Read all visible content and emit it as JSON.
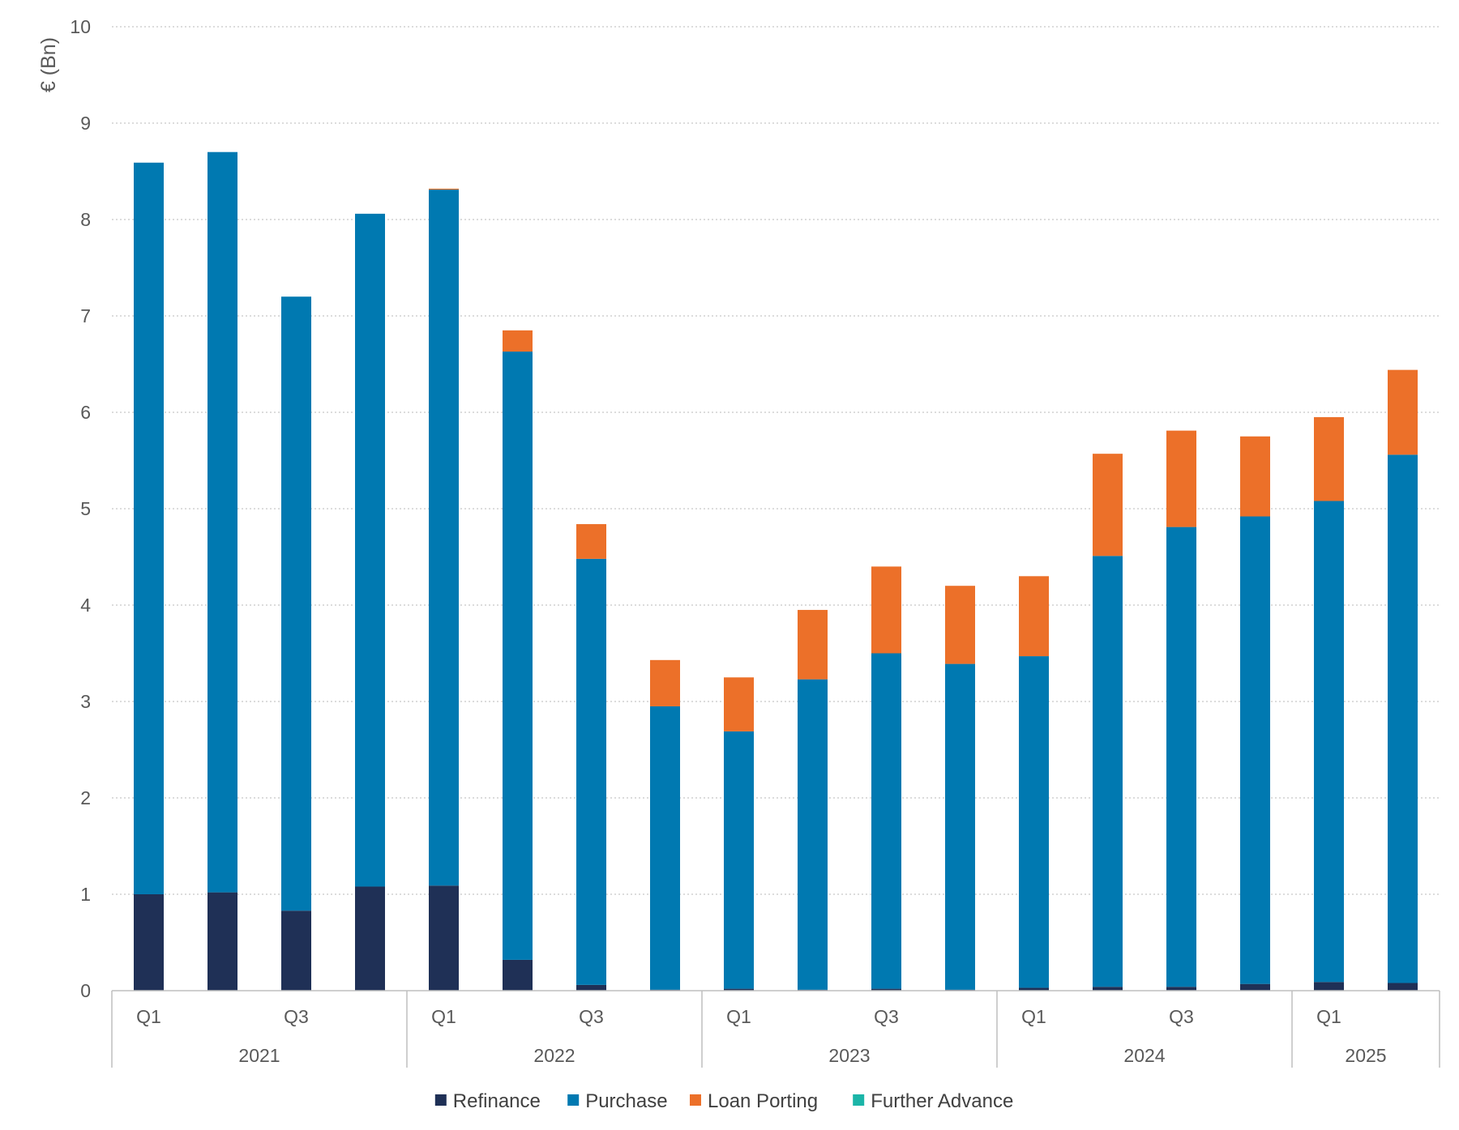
{
  "chart_data": {
    "type": "bar",
    "stacked": true,
    "ylabel": "€ (Bn)",
    "ylim": [
      0,
      10
    ],
    "yticks": [
      0,
      1,
      2,
      3,
      4,
      5,
      6,
      7,
      8,
      9,
      10
    ],
    "grid": true,
    "legend_position": "bottom",
    "categories": [
      "2021 Q1",
      "2021 Q2",
      "2021 Q3",
      "2021 Q4",
      "2022 Q1",
      "2022 Q2",
      "2022 Q3",
      "2022 Q4",
      "2023 Q1",
      "2023 Q2",
      "2023 Q3",
      "2023 Q4",
      "2024 Q1",
      "2024 Q2",
      "2024 Q3",
      "2024 Q4",
      "2025 Q1",
      "2025 Q2"
    ],
    "quarter_labels": [
      "Q1",
      "",
      "Q3",
      "",
      "Q1",
      "",
      "Q3",
      "",
      "Q1",
      "",
      "Q3",
      "",
      "Q1",
      "",
      "Q3",
      "",
      "Q1",
      ""
    ],
    "year_groups": [
      {
        "label": "2021",
        "count": 4
      },
      {
        "label": "2022",
        "count": 4
      },
      {
        "label": "2023",
        "count": 4
      },
      {
        "label": "2024",
        "count": 4
      },
      {
        "label": "2025",
        "count": 2
      }
    ],
    "series": [
      {
        "name": "Refinance",
        "color": "#1f3056",
        "values": [
          1.0,
          1.02,
          0.83,
          1.08,
          1.09,
          0.32,
          0.06,
          0.01,
          0.02,
          0.01,
          0.02,
          0.01,
          0.03,
          0.04,
          0.04,
          0.07,
          0.09,
          0.08
        ]
      },
      {
        "name": "Purchase",
        "color": "#0079b1",
        "values": [
          7.59,
          7.68,
          6.37,
          6.98,
          7.22,
          6.31,
          4.42,
          2.94,
          2.67,
          3.22,
          3.48,
          3.38,
          3.44,
          4.47,
          4.77,
          4.85,
          4.99,
          5.48
        ]
      },
      {
        "name": "Loan Porting",
        "color": "#ec7029",
        "values": [
          0,
          0,
          0,
          0,
          0.01,
          0.22,
          0.36,
          0.48,
          0.56,
          0.72,
          0.9,
          0.81,
          0.83,
          1.06,
          1.0,
          0.83,
          0.87,
          0.88
        ]
      },
      {
        "name": "Further Advance",
        "color": "#1bb5a8",
        "values": [
          0,
          0,
          0,
          0,
          0,
          0,
          0,
          0,
          0,
          0,
          0,
          0,
          0,
          0,
          0,
          0,
          0,
          0
        ]
      }
    ]
  }
}
